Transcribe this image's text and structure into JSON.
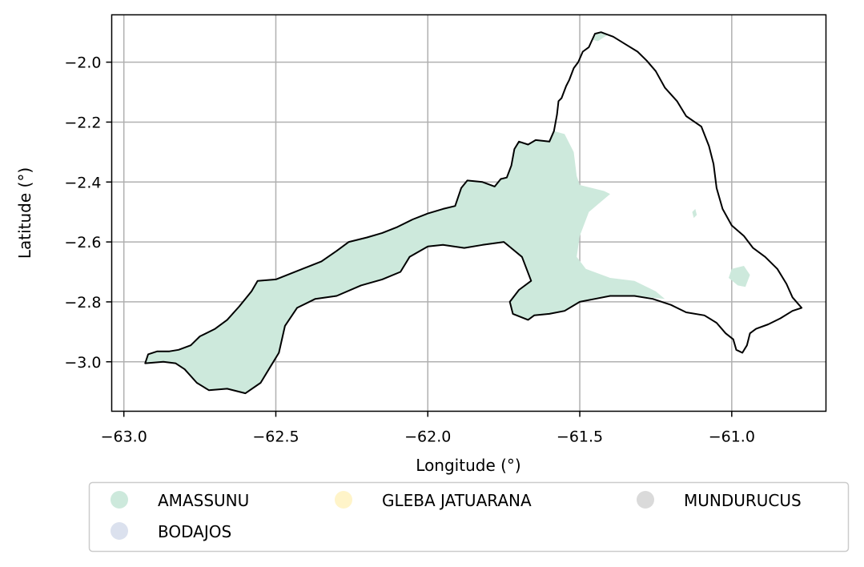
{
  "chart_data": {
    "type": "map",
    "xlabel": "Longitude (°)",
    "ylabel": "Latitude (°)",
    "xlim": [
      -63.04,
      -60.69
    ],
    "ylim": [
      -3.165,
      -1.842
    ],
    "x_ticks": [
      -63.0,
      -62.5,
      -62.0,
      -61.5,
      -61.0
    ],
    "x_tick_labels": [
      "−63.0",
      "−62.5",
      "−62.0",
      "−61.5",
      "−61.0"
    ],
    "y_ticks": [
      -2.0,
      -2.2,
      -2.4,
      -2.6,
      -2.8,
      -3.0
    ],
    "y_tick_labels": [
      "−2.0",
      "−2.2",
      "−2.4",
      "−2.6",
      "−2.8",
      "−3.0"
    ],
    "grid": true,
    "legend_placement": "bottom, outside plot, 3 columns",
    "series": [
      {
        "name": "AMASSUNU",
        "color": "#cde9dc"
      },
      {
        "name": "BODAJOS",
        "color": "#dbe1ee"
      },
      {
        "name": "GLEBA JATUARANA",
        "color": "#fff4c9"
      },
      {
        "name": "MUNDURUCUS",
        "color": "#dadada"
      }
    ],
    "boundary": [
      [
        -62.93,
        -3.005
      ],
      [
        -62.92,
        -2.975
      ],
      [
        -62.89,
        -2.965
      ],
      [
        -62.85,
        -2.965
      ],
      [
        -62.82,
        -2.96
      ],
      [
        -62.78,
        -2.945
      ],
      [
        -62.75,
        -2.915
      ],
      [
        -62.7,
        -2.89
      ],
      [
        -62.66,
        -2.86
      ],
      [
        -62.62,
        -2.815
      ],
      [
        -62.58,
        -2.765
      ],
      [
        -62.56,
        -2.73
      ],
      [
        -62.5,
        -2.725
      ],
      [
        -62.45,
        -2.705
      ],
      [
        -62.4,
        -2.685
      ],
      [
        -62.35,
        -2.665
      ],
      [
        -62.3,
        -2.63
      ],
      [
        -62.26,
        -2.6
      ],
      [
        -62.2,
        -2.585
      ],
      [
        -62.15,
        -2.57
      ],
      [
        -62.1,
        -2.55
      ],
      [
        -62.05,
        -2.525
      ],
      [
        -62.0,
        -2.505
      ],
      [
        -61.95,
        -2.49
      ],
      [
        -61.91,
        -2.48
      ],
      [
        -61.89,
        -2.42
      ],
      [
        -61.87,
        -2.395
      ],
      [
        -61.82,
        -2.4
      ],
      [
        -61.78,
        -2.415
      ],
      [
        -61.76,
        -2.39
      ],
      [
        -61.74,
        -2.385
      ],
      [
        -61.725,
        -2.345
      ],
      [
        -61.715,
        -2.29
      ],
      [
        -61.7,
        -2.265
      ],
      [
        -61.67,
        -2.275
      ],
      [
        -61.645,
        -2.26
      ],
      [
        -61.6,
        -2.265
      ],
      [
        -61.585,
        -2.23
      ],
      [
        -61.575,
        -2.175
      ],
      [
        -61.57,
        -2.13
      ],
      [
        -61.56,
        -2.12
      ],
      [
        -61.545,
        -2.08
      ],
      [
        -61.535,
        -2.06
      ],
      [
        -61.52,
        -2.02
      ],
      [
        -61.505,
        -2.0
      ],
      [
        -61.49,
        -1.965
      ],
      [
        -61.47,
        -1.95
      ],
      [
        -61.45,
        -1.905
      ],
      [
        -61.43,
        -1.9
      ],
      [
        -61.39,
        -1.915
      ],
      [
        -61.35,
        -1.94
      ],
      [
        -61.31,
        -1.965
      ],
      [
        -61.28,
        -1.995
      ],
      [
        -61.25,
        -2.03
      ],
      [
        -61.22,
        -2.085
      ],
      [
        -61.18,
        -2.13
      ],
      [
        -61.15,
        -2.18
      ],
      [
        -61.1,
        -2.215
      ],
      [
        -61.075,
        -2.28
      ],
      [
        -61.06,
        -2.34
      ],
      [
        -61.05,
        -2.42
      ],
      [
        -61.03,
        -2.49
      ],
      [
        -61.0,
        -2.545
      ],
      [
        -60.96,
        -2.58
      ],
      [
        -60.93,
        -2.62
      ],
      [
        -60.89,
        -2.65
      ],
      [
        -60.85,
        -2.69
      ],
      [
        -60.82,
        -2.74
      ],
      [
        -60.8,
        -2.785
      ],
      [
        -60.77,
        -2.82
      ],
      [
        -60.8,
        -2.83
      ],
      [
        -60.84,
        -2.855
      ],
      [
        -60.88,
        -2.875
      ],
      [
        -60.92,
        -2.89
      ],
      [
        -60.94,
        -2.905
      ],
      [
        -60.95,
        -2.945
      ],
      [
        -60.965,
        -2.97
      ],
      [
        -60.985,
        -2.96
      ],
      [
        -60.995,
        -2.925
      ],
      [
        -61.02,
        -2.905
      ],
      [
        -61.05,
        -2.87
      ],
      [
        -61.09,
        -2.845
      ],
      [
        -61.15,
        -2.835
      ],
      [
        -61.2,
        -2.81
      ],
      [
        -61.26,
        -2.79
      ],
      [
        -61.32,
        -2.78
      ],
      [
        -61.4,
        -2.78
      ],
      [
        -61.45,
        -2.79
      ],
      [
        -61.5,
        -2.8
      ],
      [
        -61.55,
        -2.83
      ],
      [
        -61.6,
        -2.84
      ],
      [
        -61.65,
        -2.845
      ],
      [
        -61.67,
        -2.86
      ],
      [
        -61.72,
        -2.84
      ],
      [
        -61.73,
        -2.8
      ],
      [
        -61.7,
        -2.76
      ],
      [
        -61.66,
        -2.73
      ],
      [
        -61.69,
        -2.65
      ],
      [
        -61.75,
        -2.6
      ],
      [
        -61.82,
        -2.61
      ],
      [
        -61.88,
        -2.62
      ],
      [
        -61.95,
        -2.61
      ],
      [
        -62.0,
        -2.615
      ],
      [
        -62.06,
        -2.65
      ],
      [
        -62.09,
        -2.7
      ],
      [
        -62.15,
        -2.725
      ],
      [
        -62.22,
        -2.745
      ],
      [
        -62.3,
        -2.78
      ],
      [
        -62.37,
        -2.79
      ],
      [
        -62.43,
        -2.82
      ],
      [
        -62.47,
        -2.88
      ],
      [
        -62.49,
        -2.97
      ],
      [
        -62.52,
        -3.02
      ],
      [
        -62.55,
        -3.07
      ],
      [
        -62.6,
        -3.105
      ],
      [
        -62.66,
        -3.09
      ],
      [
        -62.72,
        -3.095
      ],
      [
        -62.76,
        -3.07
      ],
      [
        -62.8,
        -3.025
      ],
      [
        -62.83,
        -3.005
      ],
      [
        -62.87,
        -3.0
      ],
      [
        -62.93,
        -3.005
      ]
    ],
    "amassunu_area": [
      [
        -62.93,
        -3.005
      ],
      [
        -62.92,
        -2.975
      ],
      [
        -62.89,
        -2.965
      ],
      [
        -62.85,
        -2.965
      ],
      [
        -62.82,
        -2.96
      ],
      [
        -62.78,
        -2.945
      ],
      [
        -62.75,
        -2.915
      ],
      [
        -62.7,
        -2.89
      ],
      [
        -62.66,
        -2.86
      ],
      [
        -62.62,
        -2.815
      ],
      [
        -62.58,
        -2.765
      ],
      [
        -62.56,
        -2.73
      ],
      [
        -62.5,
        -2.725
      ],
      [
        -62.45,
        -2.705
      ],
      [
        -62.4,
        -2.685
      ],
      [
        -62.35,
        -2.665
      ],
      [
        -62.3,
        -2.63
      ],
      [
        -62.26,
        -2.6
      ],
      [
        -62.2,
        -2.585
      ],
      [
        -62.15,
        -2.57
      ],
      [
        -62.1,
        -2.55
      ],
      [
        -62.05,
        -2.525
      ],
      [
        -62.0,
        -2.505
      ],
      [
        -61.95,
        -2.49
      ],
      [
        -61.91,
        -2.48
      ],
      [
        -61.89,
        -2.42
      ],
      [
        -61.87,
        -2.395
      ],
      [
        -61.82,
        -2.4
      ],
      [
        -61.78,
        -2.415
      ],
      [
        -61.76,
        -2.39
      ],
      [
        -61.74,
        -2.385
      ],
      [
        -61.725,
        -2.345
      ],
      [
        -61.715,
        -2.29
      ],
      [
        -61.7,
        -2.265
      ],
      [
        -61.67,
        -2.275
      ],
      [
        -61.645,
        -2.26
      ],
      [
        -61.6,
        -2.265
      ],
      [
        -61.585,
        -2.23
      ],
      [
        -61.55,
        -2.24
      ],
      [
        -61.52,
        -2.3
      ],
      [
        -61.51,
        -2.38
      ],
      [
        -61.5,
        -2.41
      ],
      [
        -61.42,
        -2.43
      ],
      [
        -61.4,
        -2.44
      ],
      [
        -61.47,
        -2.5
      ],
      [
        -61.5,
        -2.58
      ],
      [
        -61.51,
        -2.65
      ],
      [
        -61.48,
        -2.69
      ],
      [
        -61.4,
        -2.72
      ],
      [
        -61.32,
        -2.73
      ],
      [
        -61.25,
        -2.765
      ],
      [
        -61.22,
        -2.79
      ],
      [
        -61.32,
        -2.78
      ],
      [
        -61.4,
        -2.78
      ],
      [
        -61.45,
        -2.79
      ],
      [
        -61.5,
        -2.8
      ],
      [
        -61.55,
        -2.83
      ],
      [
        -61.6,
        -2.84
      ],
      [
        -61.65,
        -2.845
      ],
      [
        -61.67,
        -2.86
      ],
      [
        -61.72,
        -2.84
      ],
      [
        -61.73,
        -2.8
      ],
      [
        -61.7,
        -2.76
      ],
      [
        -61.66,
        -2.73
      ],
      [
        -61.69,
        -2.65
      ],
      [
        -61.75,
        -2.6
      ],
      [
        -61.82,
        -2.61
      ],
      [
        -61.88,
        -2.62
      ],
      [
        -61.95,
        -2.61
      ],
      [
        -62.0,
        -2.615
      ],
      [
        -62.06,
        -2.65
      ],
      [
        -62.09,
        -2.7
      ],
      [
        -62.15,
        -2.725
      ],
      [
        -62.22,
        -2.745
      ],
      [
        -62.3,
        -2.78
      ],
      [
        -62.37,
        -2.79
      ],
      [
        -62.43,
        -2.82
      ],
      [
        -62.47,
        -2.88
      ],
      [
        -62.49,
        -2.97
      ],
      [
        -62.52,
        -3.02
      ],
      [
        -62.55,
        -3.07
      ],
      [
        -62.6,
        -3.105
      ],
      [
        -62.66,
        -3.09
      ],
      [
        -62.72,
        -3.095
      ],
      [
        -62.76,
        -3.07
      ],
      [
        -62.8,
        -3.025
      ],
      [
        -62.83,
        -3.005
      ],
      [
        -62.87,
        -3.0
      ],
      [
        -62.93,
        -3.005
      ]
    ],
    "amassunu_patches": [
      [
        [
          -61.45,
          -1.905
        ],
        [
          -61.43,
          -1.9
        ],
        [
          -61.41,
          -1.91
        ],
        [
          -61.44,
          -1.93
        ],
        [
          -61.46,
          -1.925
        ]
      ],
      [
        [
          -61.0,
          -2.69
        ],
        [
          -60.96,
          -2.68
        ],
        [
          -60.94,
          -2.71
        ],
        [
          -60.955,
          -2.75
        ],
        [
          -60.98,
          -2.745
        ],
        [
          -61.01,
          -2.72
        ]
      ],
      [
        [
          -61.13,
          -2.5
        ],
        [
          -61.12,
          -2.49
        ],
        [
          -61.115,
          -2.51
        ],
        [
          -61.125,
          -2.52
        ]
      ]
    ]
  }
}
